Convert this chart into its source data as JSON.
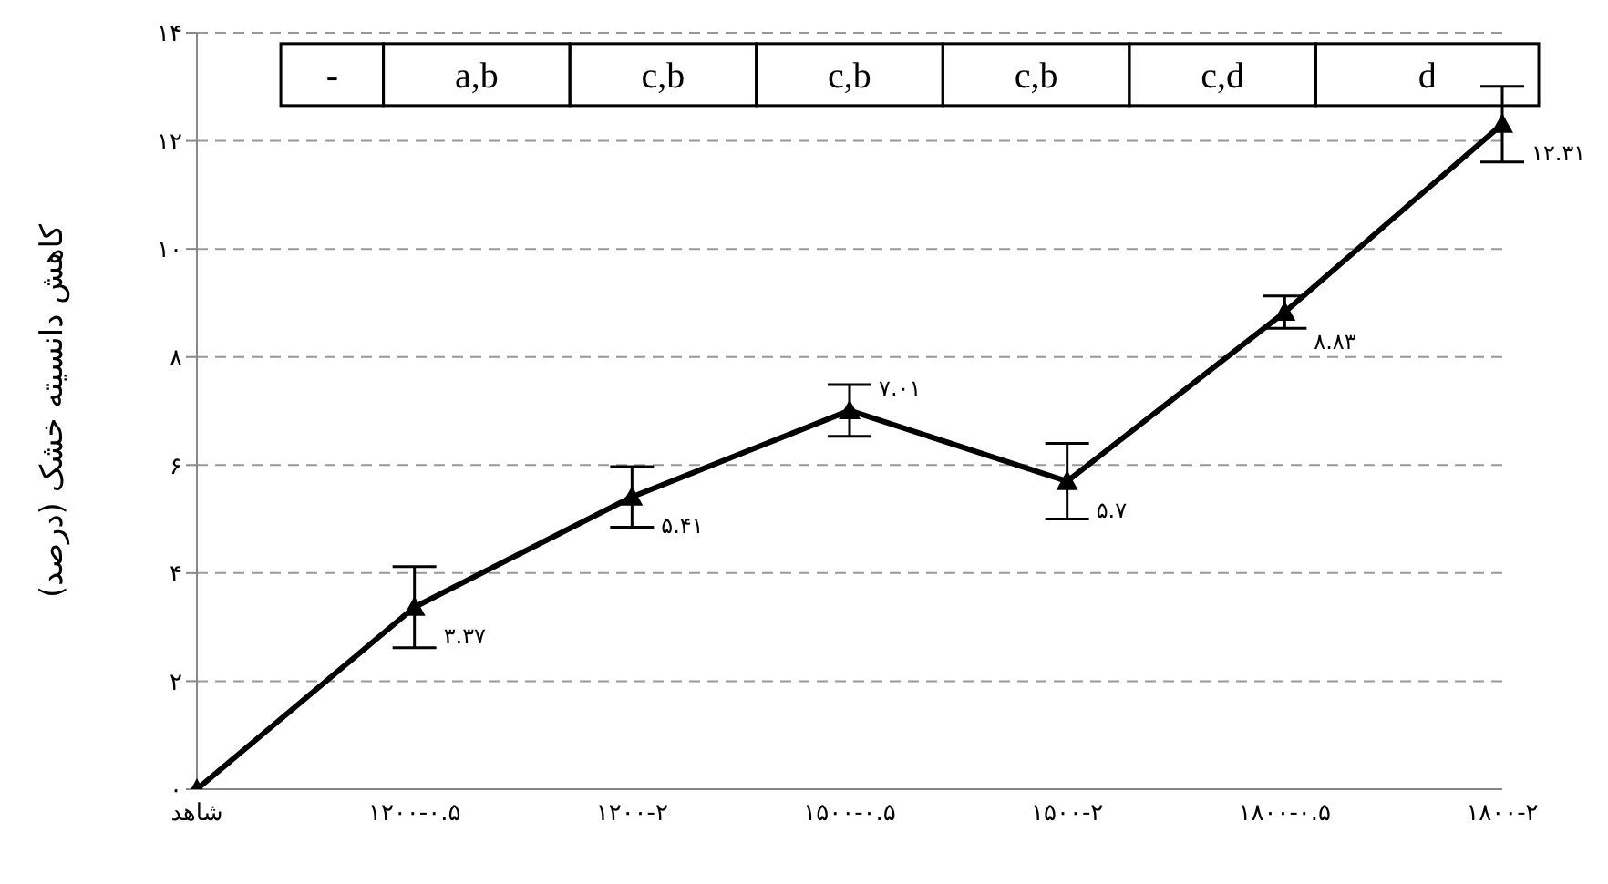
{
  "chart_data": {
    "type": "line",
    "ylabel": "کاهش دانسیته خشک (درصد)",
    "categories": [
      "شاهد",
      "۱۲۰۰-۰.۵",
      "۱۲۰۰-۲",
      "۱۵۰۰-۰.۵",
      "۱۵۰۰-۲",
      "۱۸۰۰-۰.۵",
      "۱۸۰۰-۲"
    ],
    "series": [
      {
        "color": "#000000",
        "values": [
          0,
          3.37,
          5.41,
          7.01,
          5.7,
          8.83,
          12.31
        ],
        "errors": [
          null,
          0.75,
          0.56,
          0.48,
          0.7,
          0.3,
          0.7
        ],
        "value_labels": [
          null,
          "۳.۳۷",
          "۵.۴۱",
          "۷.۰۱",
          "۵.۷",
          "۸.۸۳",
          "۱۲.۳۱"
        ]
      }
    ],
    "ylim": [
      0,
      14
    ],
    "yticks": [
      {
        "value": 0,
        "label": "۰"
      },
      {
        "value": 2,
        "label": "۲"
      },
      {
        "value": 4,
        "label": "۴"
      },
      {
        "value": 6,
        "label": "۶"
      },
      {
        "value": 8,
        "label": "۸"
      },
      {
        "value": 10,
        "label": "۱۰"
      },
      {
        "value": 12,
        "label": "۱۲"
      },
      {
        "value": 14,
        "label": "۱۴"
      }
    ],
    "grid": "y",
    "marker": "triangle",
    "line_style": "solid",
    "legend": false,
    "annotations": [
      "-",
      "a,b",
      "c,b",
      "c,b",
      "c,b",
      "c,d",
      "d"
    ]
  }
}
